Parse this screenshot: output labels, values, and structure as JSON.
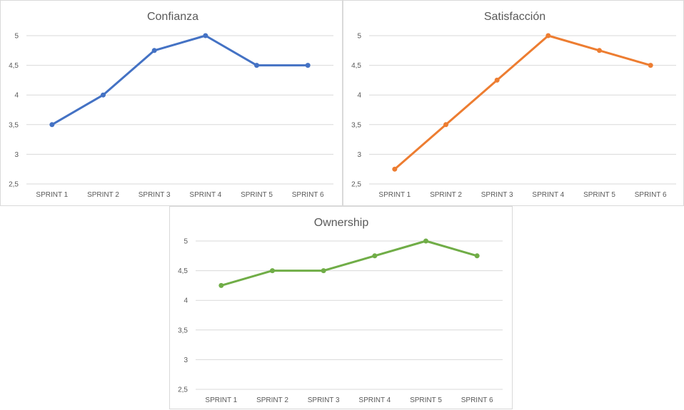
{
  "chart_data": [
    {
      "type": "line",
      "title": "Confianza",
      "categories": [
        "SPRINT 1",
        "SPRINT 2",
        "SPRINT 3",
        "SPRINT 4",
        "SPRINT 5",
        "SPRINT 6"
      ],
      "series": [
        {
          "values": [
            3.5,
            4,
            4.75,
            5,
            4.5,
            4.5
          ],
          "color": "#4472C4"
        }
      ],
      "yticks": [
        "2,5",
        "3",
        "3,5",
        "4",
        "4,5",
        "5"
      ],
      "ylim": [
        2.5,
        5
      ],
      "grid": true,
      "legend": "none"
    },
    {
      "type": "line",
      "title": "Satisfacción",
      "categories": [
        "SPRINT 1",
        "SPRINT 2",
        "SPRINT 3",
        "SPRINT 4",
        "SPRINT 5",
        "SPRINT 6"
      ],
      "series": [
        {
          "values": [
            2.75,
            3.5,
            4.25,
            5,
            4.75,
            4.5
          ],
          "color": "#ED7D31"
        }
      ],
      "yticks": [
        "2,5",
        "3",
        "3,5",
        "4",
        "4,5",
        "5"
      ],
      "ylim": [
        2.5,
        5
      ],
      "grid": true,
      "legend": "none"
    },
    {
      "type": "line",
      "title": "Ownership",
      "categories": [
        "SPRINT 1",
        "SPRINT 2",
        "SPRINT 3",
        "SPRINT 4",
        "SPRINT 5",
        "SPRINT 6"
      ],
      "series": [
        {
          "values": [
            4.25,
            4.5,
            4.5,
            4.75,
            5,
            4.75
          ],
          "color": "#70AD47"
        }
      ],
      "yticks": [
        "2,5",
        "3",
        "3,5",
        "4",
        "4,5",
        "5"
      ],
      "ylim": [
        2.5,
        5
      ],
      "grid": true,
      "legend": "none"
    }
  ]
}
